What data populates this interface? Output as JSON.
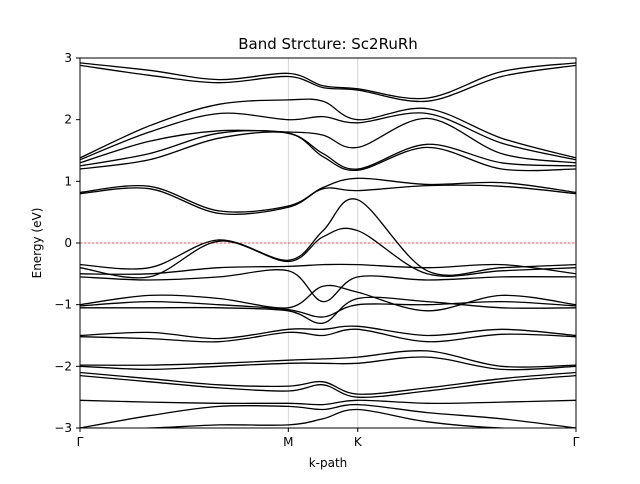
{
  "chart_data": {
    "type": "line",
    "title": "Band Strcture: Sc2RuRh",
    "xlabel": "k-path",
    "ylabel": "Energy (eV)",
    "ylim": [
      -3,
      3
    ],
    "xlim": [
      0,
      1
    ],
    "grid": false,
    "legend": "none",
    "fermi_level": 0,
    "yticks": [
      -3,
      -2,
      -1,
      0,
      1,
      2,
      3
    ],
    "ytick_labels": [
      "−3",
      "−2",
      "−1",
      "0",
      "1",
      "2",
      "3"
    ],
    "high_symmetry_points": [
      {
        "label": "Γ",
        "x": 0.0
      },
      {
        "label": "M",
        "x": 0.42
      },
      {
        "label": "K",
        "x": 0.56
      },
      {
        "label": "Γ",
        "x": 1.0
      }
    ],
    "x": [
      0.0,
      0.14,
      0.28,
      0.42,
      0.49,
      0.56,
      0.7,
      0.85,
      1.0
    ],
    "series": [
      {
        "values": [
          2.92,
          2.8,
          2.65,
          2.75,
          2.55,
          2.5,
          2.35,
          2.78,
          2.92
        ]
      },
      {
        "values": [
          2.88,
          2.72,
          2.6,
          2.7,
          2.52,
          2.48,
          2.3,
          2.7,
          2.88
        ]
      },
      {
        "values": [
          1.38,
          1.9,
          2.25,
          2.32,
          2.3,
          2.0,
          2.18,
          1.7,
          1.38
        ]
      },
      {
        "values": [
          1.35,
          1.8,
          2.1,
          2.0,
          2.05,
          1.95,
          2.1,
          1.62,
          1.35
        ]
      },
      {
        "values": [
          1.3,
          1.65,
          1.82,
          1.8,
          1.75,
          1.55,
          2.02,
          1.45,
          1.3
        ]
      },
      {
        "values": [
          1.25,
          1.45,
          1.78,
          1.78,
          1.45,
          1.2,
          1.6,
          1.3,
          1.25
        ]
      },
      {
        "values": [
          1.2,
          1.35,
          1.7,
          1.78,
          1.4,
          1.18,
          1.55,
          1.2,
          1.2
        ]
      },
      {
        "values": [
          0.82,
          0.92,
          0.52,
          0.6,
          0.9,
          1.05,
          0.95,
          0.98,
          0.82
        ]
      },
      {
        "values": [
          0.8,
          0.88,
          0.48,
          0.58,
          0.88,
          0.85,
          0.93,
          0.92,
          0.8
        ]
      },
      {
        "values": [
          -0.35,
          -0.4,
          0.05,
          -0.28,
          0.2,
          0.7,
          -0.45,
          -0.4,
          -0.35
        ]
      },
      {
        "values": [
          -0.4,
          -0.55,
          0.03,
          -0.3,
          0.1,
          0.2,
          -0.5,
          -0.45,
          -0.4
        ]
      },
      {
        "values": [
          -0.5,
          -0.5,
          -0.4,
          -0.38,
          -0.35,
          -0.35,
          -0.4,
          -0.35,
          -0.5
        ]
      },
      {
        "values": [
          -0.55,
          -0.6,
          -0.55,
          -0.45,
          -0.95,
          -0.55,
          -0.6,
          -0.55,
          -0.55
        ]
      },
      {
        "values": [
          -1.0,
          -0.85,
          -0.9,
          -1.05,
          -0.7,
          -0.8,
          -1.1,
          -0.85,
          -1.0
        ]
      },
      {
        "values": [
          -1.02,
          -0.95,
          -1.0,
          -1.08,
          -1.2,
          -1.0,
          -1.0,
          -0.95,
          -1.02
        ]
      },
      {
        "values": [
          -1.05,
          -1.05,
          -1.05,
          -1.1,
          -1.3,
          -0.9,
          -0.95,
          -1.05,
          -1.05
        ]
      },
      {
        "values": [
          -1.5,
          -1.45,
          -1.55,
          -1.4,
          -1.4,
          -1.35,
          -1.5,
          -1.4,
          -1.5
        ]
      },
      {
        "values": [
          -1.52,
          -1.55,
          -1.6,
          -1.45,
          -1.5,
          -1.4,
          -1.6,
          -1.48,
          -1.52
        ]
      },
      {
        "values": [
          -1.98,
          -1.98,
          -1.95,
          -1.9,
          -1.88,
          -1.85,
          -1.75,
          -2.0,
          -1.98
        ]
      },
      {
        "values": [
          -2.0,
          -2.05,
          -2.0,
          -1.95,
          -1.95,
          -1.95,
          -1.85,
          -2.05,
          -2.0
        ]
      },
      {
        "values": [
          -2.1,
          -2.2,
          -2.3,
          -2.32,
          -2.25,
          -2.45,
          -2.35,
          -2.2,
          -2.1
        ]
      },
      {
        "values": [
          -2.15,
          -2.25,
          -2.35,
          -2.4,
          -2.3,
          -2.5,
          -2.4,
          -2.25,
          -2.15
        ]
      },
      {
        "values": [
          -2.55,
          -2.58,
          -2.6,
          -2.6,
          -2.62,
          -2.55,
          -2.6,
          -2.58,
          -2.55
        ]
      },
      {
        "values": [
          -3.0,
          -2.8,
          -2.65,
          -2.65,
          -2.7,
          -2.62,
          -2.75,
          -2.85,
          -3.0
        ]
      },
      {
        "values": [
          -3.0,
          -3.0,
          -2.95,
          -2.95,
          -2.85,
          -2.7,
          -2.9,
          -3.0,
          -3.0
        ]
      }
    ]
  }
}
